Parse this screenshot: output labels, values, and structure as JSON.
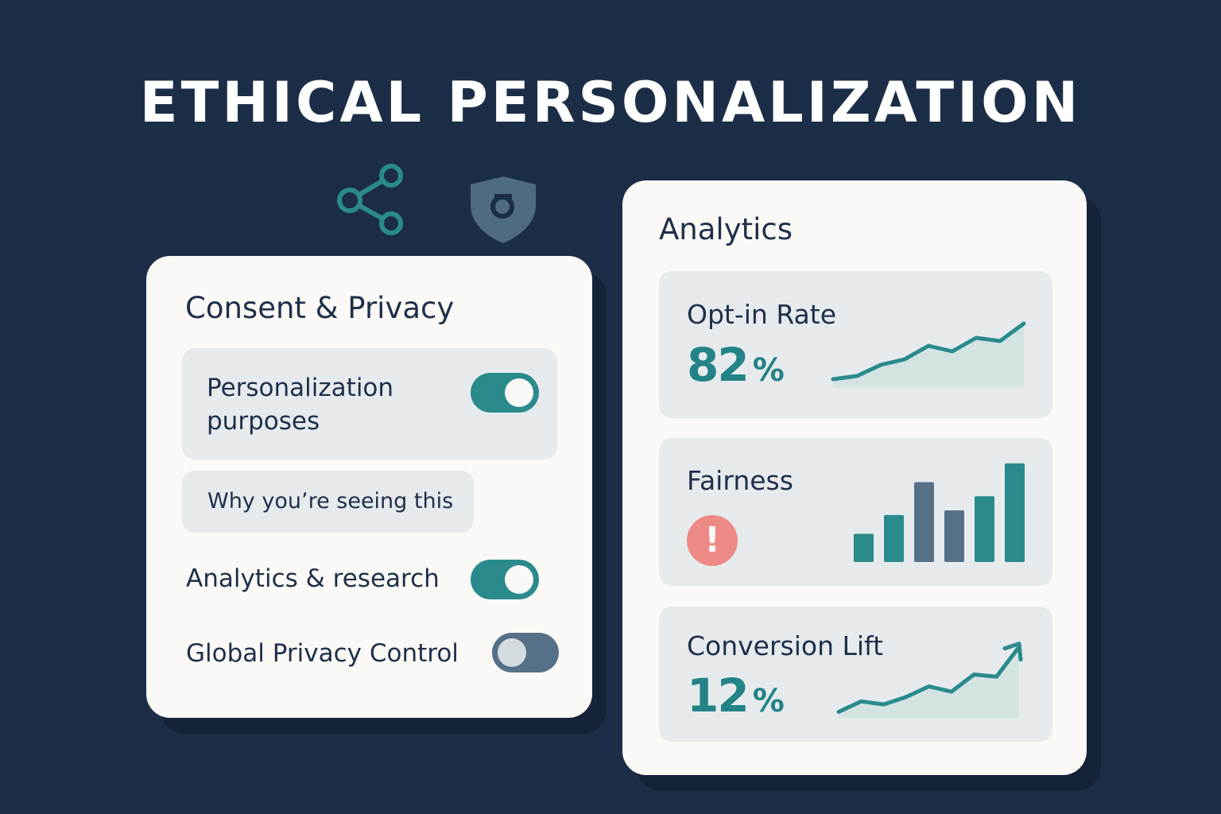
{
  "page": {
    "title": "ETHICAL PERSONALIZATION"
  },
  "colors": {
    "background": "#1c2e47",
    "card": "#fbf9f5",
    "accent": "#2a8a8c",
    "slate": "#567087",
    "alert": "#ee8a86"
  },
  "icons": {
    "share": "share-icon",
    "shield": "shield-sigma-icon",
    "alert": "alert-icon"
  },
  "consent": {
    "title": "Consent & Privacy",
    "personalization": {
      "label_line1": "Personalization",
      "label_line2": "purposes",
      "enabled": true
    },
    "why_button": "Why you’re seeing this",
    "analytics_research": {
      "label": "Analytics & research",
      "enabled": true
    },
    "gpc": {
      "label": "Global Privacy Control",
      "enabled": false
    }
  },
  "analytics": {
    "title": "Analytics",
    "opt_in": {
      "label": "Opt-in Rate",
      "value": "82",
      "unit": "%"
    },
    "fairness": {
      "label": "Fairness",
      "alert_symbol": "!"
    },
    "conversion": {
      "label": "Conversion Lift",
      "value": "12",
      "unit": "%"
    }
  },
  "chart_data": [
    {
      "type": "area",
      "x": [
        1,
        2,
        3,
        4,
        5,
        6,
        7,
        8,
        9
      ],
      "values": [
        10,
        14,
        28,
        35,
        52,
        45,
        62,
        58,
        80
      ]
    },
    {
      "type": "bar",
      "categories": [
        "1",
        "2",
        "3",
        "4",
        "5",
        "6"
      ],
      "values": [
        3,
        5,
        8.5,
        5.5,
        7,
        10.5
      ],
      "colors": [
        "#2a8a8c",
        "#2a8a8c",
        "#567087",
        "#567087",
        "#2a8a8c",
        "#2a8a8c"
      ]
    },
    {
      "type": "area",
      "x": [
        1,
        2,
        3,
        4,
        5,
        6,
        7,
        8,
        9
      ],
      "values": [
        8,
        22,
        18,
        28,
        42,
        35,
        58,
        55,
        95
      ]
    }
  ]
}
